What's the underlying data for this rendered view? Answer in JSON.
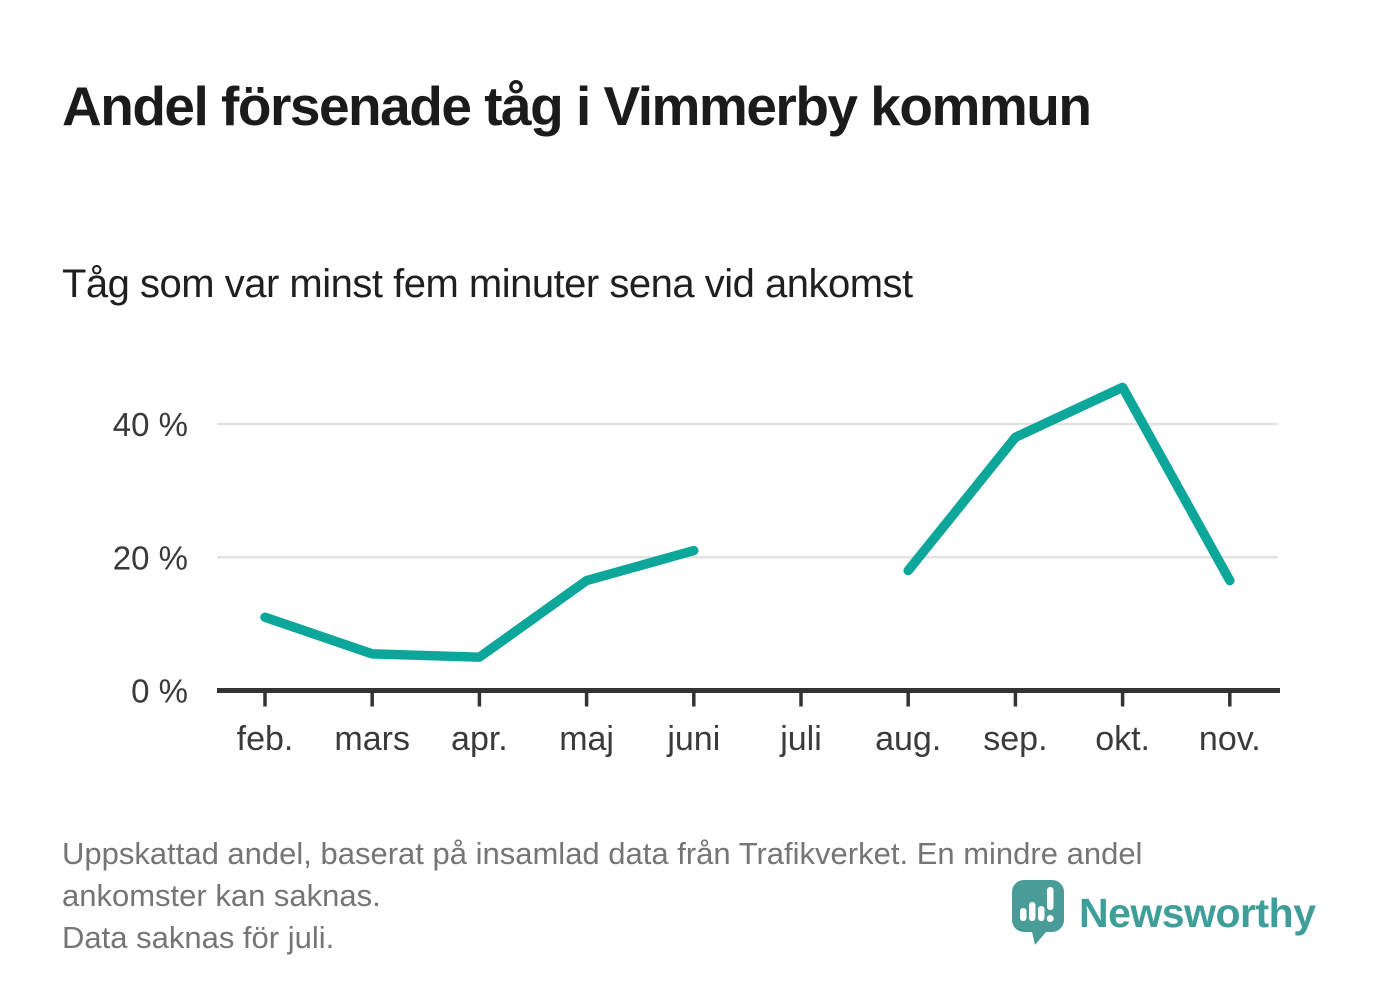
{
  "chart_data": {
    "type": "line",
    "title": "Andel försenade tåg i Vimmerby kommun",
    "subtitle": "Tåg som var minst fem minuter sena vid ankomst",
    "categories": [
      "feb.",
      "mars",
      "apr.",
      "maj",
      "juni",
      "juli",
      "aug.",
      "sep.",
      "okt.",
      "nov."
    ],
    "values": [
      11,
      5.5,
      5,
      16.5,
      21,
      null,
      18,
      38,
      45.5,
      16.5
    ],
    "unit": "%",
    "ylim": [
      0,
      48
    ],
    "y_ticks": [
      {
        "value": 0,
        "label": "0 %"
      },
      {
        "value": 20,
        "label": "20 %"
      },
      {
        "value": 40,
        "label": "40 %"
      }
    ],
    "grid": "horizontal-only",
    "legend": "none",
    "line_color": "#0da69a",
    "missing_data_categories": [
      "juli"
    ]
  },
  "footnote": {
    "lines": [
      "Uppskattad andel, baserat på insamlad data från Trafikverket. En mindre andel",
      "ankomster kan saknas.",
      "Data saknas för juli."
    ]
  },
  "logo": {
    "text": "Newsworthy",
    "icon": "newsworthy-speech-bubble-bar-chart-icon",
    "text_color": "#3d9e9a",
    "icon_color": "#4a9c98"
  },
  "colors": {
    "background": "#ffffff",
    "title_text": "#1b1b1b",
    "axis": "#333333",
    "axis_label": "#3a3a3a",
    "gridline": "#e2e2e2",
    "footnote_text": "#757575",
    "line": "#0da69a"
  }
}
